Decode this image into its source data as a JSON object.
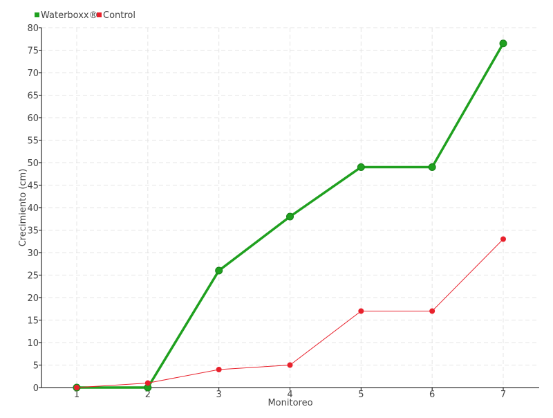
{
  "chart_data": {
    "type": "line",
    "title": "",
    "xlabel": "Monitoreo",
    "ylabel": "Crecimiento (cm)",
    "x": [
      1,
      2,
      3,
      4,
      5,
      6,
      7
    ],
    "ylim": [
      0,
      80
    ],
    "ytick_step": 5,
    "grid": true,
    "legend_position": "top-left",
    "series": [
      {
        "name": "Waterboxx®",
        "color": "#1fa01f",
        "values": [
          0,
          0,
          26,
          38,
          49,
          49,
          76.5
        ]
      },
      {
        "name": "Control",
        "color": "#e8212c",
        "values": [
          0,
          1,
          4,
          5,
          17,
          17,
          33
        ]
      }
    ]
  }
}
